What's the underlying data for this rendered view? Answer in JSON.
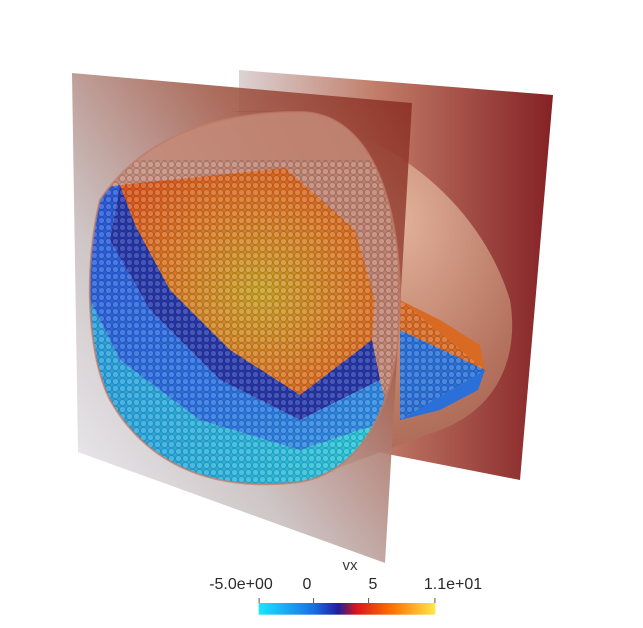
{
  "colorbar": {
    "title": "vx",
    "ticks": [
      {
        "label": "-5.0e+00",
        "value": -5
      },
      {
        "label": "0",
        "value": 0
      },
      {
        "label": "5",
        "value": 5
      },
      {
        "label": "1.1e+01",
        "value": 11
      }
    ],
    "range": [
      -5,
      11
    ],
    "colors": [
      "#19e6ff",
      "#1a6ee6",
      "#1e1f9c",
      "#d7141c",
      "#ff6f00",
      "#ffe84a"
    ]
  },
  "scene": {
    "plane_color": "#8b2a1c",
    "cylinder_color": "#c99080",
    "particle_colors": {
      "slow": "#25c6dc",
      "negative": "#2a57d8",
      "boundary": "#2331a0",
      "fast": "#e1581c",
      "fastest": "#c8a322"
    }
  }
}
